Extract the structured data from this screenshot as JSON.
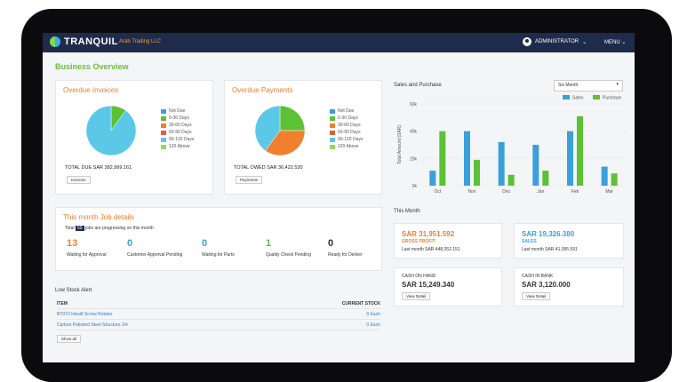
{
  "topbar": {
    "brand": "TRANQUIL",
    "company": "Arab Trading LLC",
    "user": "ADMINISTRATOR",
    "menu": "MENU"
  },
  "page_title": "Business Overview",
  "overdue_invoices": {
    "title": "Overdue Invoices",
    "total": "TOTAL DUE SAR 382,999.161",
    "button": "Invoices"
  },
  "overdue_payments": {
    "title": "Overdue Payments",
    "total": "TOTAL OWED SAR 36,422.530",
    "button": "Payments"
  },
  "aging_legend": [
    "Not Due",
    "0-30 Days",
    "30-60 Days",
    "60-90 Days",
    "90-120 Days",
    "120 Above"
  ],
  "jobs": {
    "title": "This month Job details",
    "prefix": "Total",
    "count": "50",
    "suffix": "jobs are progressing on this month",
    "items": [
      {
        "num": "13",
        "label": "Waiting for Approval"
      },
      {
        "num": "0",
        "label": "Customer Approval Pending"
      },
      {
        "num": "0",
        "label": "Waiting for Parts"
      },
      {
        "num": "1",
        "label": "Quality Check Pending"
      },
      {
        "num": "0",
        "label": "Ready for Deliver"
      }
    ]
  },
  "low_stock": {
    "title": "Low Stock Alert",
    "col_item": "ITEM",
    "col_stock": "CURRENT STOCK",
    "rows": [
      {
        "item": "BT073 Inbuilt Screw Rotator",
        "stock": "0 Each"
      },
      {
        "item": "Carbon Polished Steel Structure 3/4",
        "stock": "0 Each"
      }
    ],
    "button": "Show all"
  },
  "sales_chart_title": "Sales and Purchase",
  "period_select": "Six Month",
  "this_month": "This Month",
  "stats": [
    {
      "value": "SAR 31,951.592",
      "label": "GROSS PROFIT",
      "sub": "Last month SAR 448,252.151"
    },
    {
      "value": "SAR 19,326.380",
      "label": "SALES",
      "sub": "Last month SAR 41,095.591"
    },
    {
      "label": "CASH ON HAND",
      "value": "SAR 15,249.340",
      "button": "View Detail"
    },
    {
      "label": "CASH IN BANK",
      "value": "SAR 3,120.000",
      "button": "View Detail"
    }
  ],
  "colors": {
    "orange": "#f07f2e",
    "blue": "#3aa0dc",
    "green": "#5cc134",
    "topbar": "#1f2b4a"
  },
  "chart_data": [
    {
      "type": "pie",
      "title": "Overdue Invoices",
      "categories": [
        "Not Due",
        "0-30 Days",
        "30-60 Days",
        "60-90 Days",
        "90-120 Days",
        "120 Above"
      ],
      "values": [
        0,
        10,
        0,
        0,
        90,
        0
      ]
    },
    {
      "type": "pie",
      "title": "Overdue Payments",
      "categories": [
        "Not Due",
        "0-30 Days",
        "30-60 Days",
        "60-90 Days",
        "90-120 Days",
        "120 Above"
      ],
      "values": [
        0,
        25,
        35,
        0,
        40,
        0
      ]
    },
    {
      "type": "bar",
      "title": "Sales and Purchase",
      "categories": [
        "Oct",
        "Nov",
        "Dec",
        "Jan",
        "Feb",
        "Mar"
      ],
      "ylabel": "Total Amount (SAR)",
      "ylim": [
        0,
        60000
      ],
      "yticks": [
        "0k",
        "20k",
        "40k",
        "60k"
      ],
      "series": [
        {
          "name": "Sales",
          "values": [
            11000,
            40000,
            32000,
            30000,
            40000,
            14000
          ]
        },
        {
          "name": "Purchase",
          "values": [
            40000,
            19000,
            8000,
            11000,
            51000,
            9000
          ]
        }
      ],
      "legend": "top-right"
    }
  ]
}
